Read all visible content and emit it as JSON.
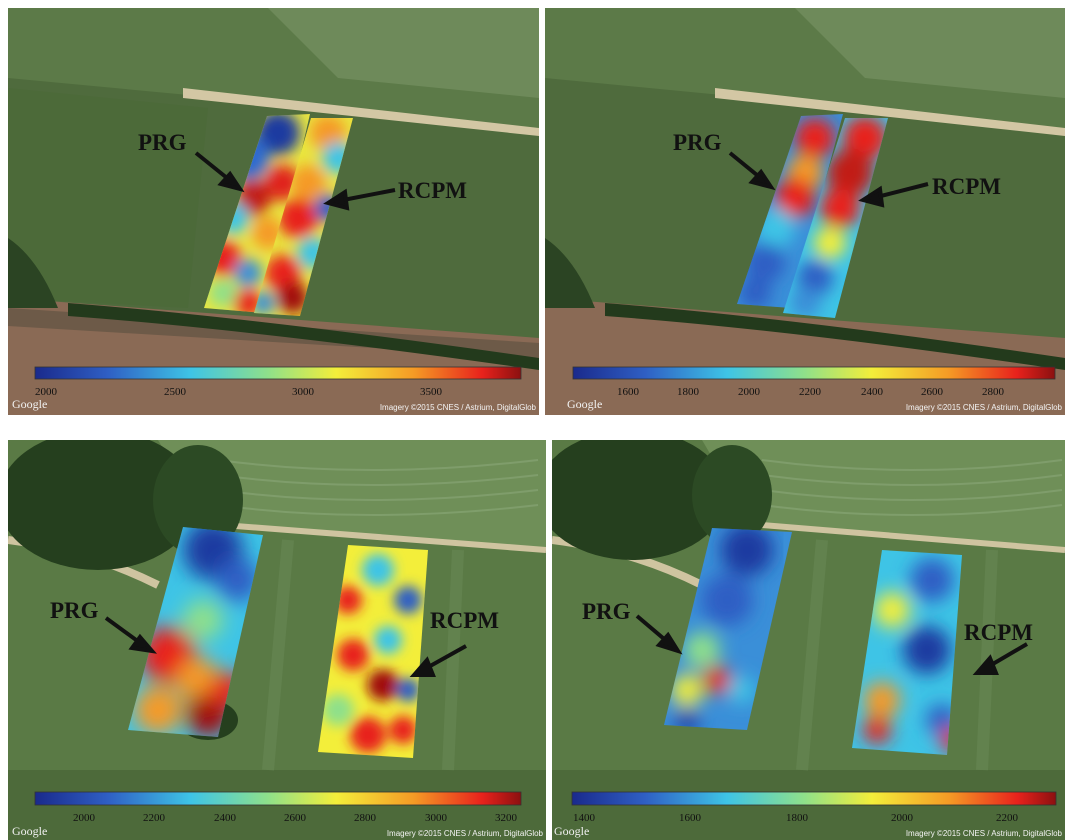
{
  "panels": [
    {
      "id": "top-left",
      "arrow_labels": [
        "PRG",
        "RCPM"
      ],
      "colorbar_ticks": [
        "2000",
        "2500",
        "3000",
        "3500"
      ],
      "watermark": "Google",
      "attribution": "Imagery ©2015 CNES / Astrium, DigitalGlob"
    },
    {
      "id": "top-right",
      "arrow_labels": [
        "PRG",
        "RCPM"
      ],
      "colorbar_ticks": [
        "1600",
        "1800",
        "2000",
        "2200",
        "2400",
        "2600",
        "2800"
      ],
      "watermark": "Google",
      "attribution": "Imagery ©2015 CNES / Astrium, DigitalGlob"
    },
    {
      "id": "bottom-left",
      "arrow_labels": [
        "PRG",
        "RCPM"
      ],
      "colorbar_ticks": [
        "2000",
        "2200",
        "2400",
        "2600",
        "2800",
        "3000",
        "3200"
      ],
      "watermark": "Google",
      "attribution": "Imagery ©2015 CNES / Astrium, DigitalGlob"
    },
    {
      "id": "bottom-right",
      "arrow_labels": [
        "PRG",
        "RCPM"
      ],
      "colorbar_ticks": [
        "1400",
        "1600",
        "1800",
        "2000",
        "2200"
      ],
      "watermark": "Google",
      "attribution": "Imagery ©2015 CNES / Astrium, DigitalGlob"
    }
  ],
  "colormap": [
    "#1a2a8c",
    "#2f5fc4",
    "#3ec4e6",
    "#8fe08a",
    "#f3ee3a",
    "#f59a25",
    "#e8221c",
    "#8b1010"
  ]
}
